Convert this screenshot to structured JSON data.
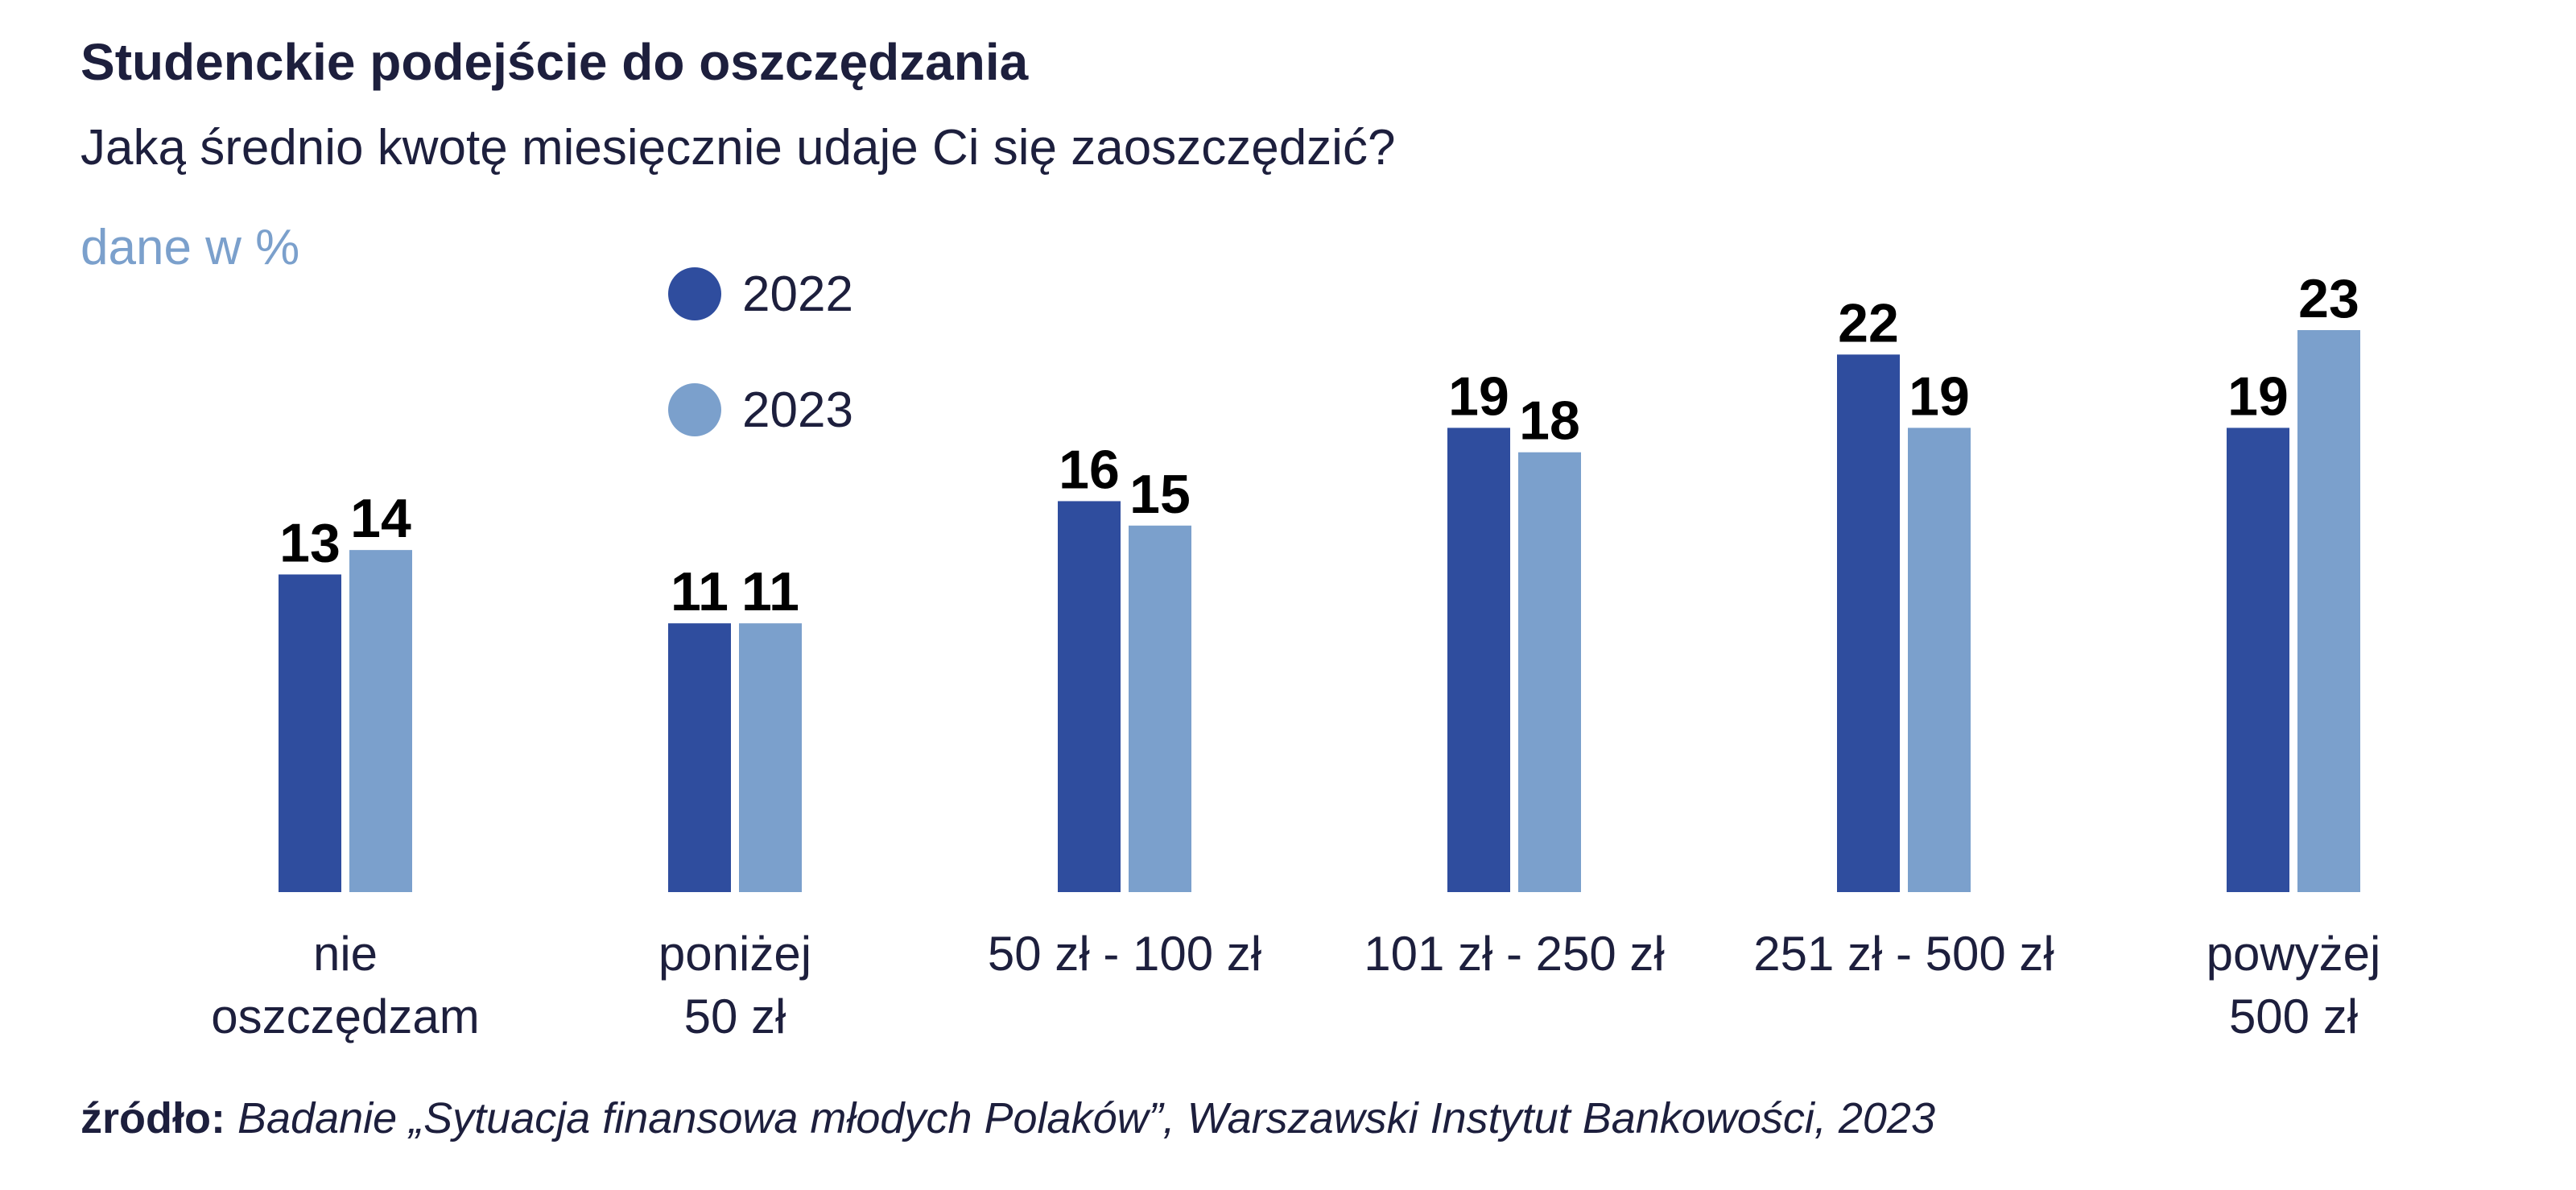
{
  "title": "Studenckie podejście do oszczędzania",
  "subtitle": "Jaką średnio kwotę miesięcznie udaje Ci się zaoszczędzić?",
  "unit_label": "dane w %",
  "source_label": "źródło:",
  "source_text": "Badanie „Sytuacja finansowa młodych Polaków”, Warszawski Instytut Bankowości, 2023",
  "colors": {
    "series_2022": "#2f4d9e",
    "series_2023": "#7ba0cc",
    "text": "#1d1f3d"
  },
  "chart_data": {
    "type": "bar",
    "title": "Studenckie podejście do oszczędzania",
    "subtitle": "Jaką średnio kwotę miesięcznie udaje Ci się zaoszczędzić?",
    "ylabel": "dane w %",
    "ylim": [
      0,
      23
    ],
    "grid": false,
    "legend": "top-left",
    "categories": [
      [
        "nie",
        "oszczędzam"
      ],
      [
        "poniżej",
        "50 zł"
      ],
      [
        "50 zł - 100 zł"
      ],
      [
        "101 zł - 250 zł"
      ],
      [
        "251 zł - 500 zł"
      ],
      [
        "powyżej",
        "500 zł"
      ]
    ],
    "series": [
      {
        "name": "2022",
        "color": "#2f4d9e",
        "values": [
          13,
          11,
          16,
          19,
          22,
          19
        ]
      },
      {
        "name": "2023",
        "color": "#7ba0cc",
        "values": [
          14,
          11,
          15,
          18,
          19,
          23
        ]
      }
    ]
  }
}
